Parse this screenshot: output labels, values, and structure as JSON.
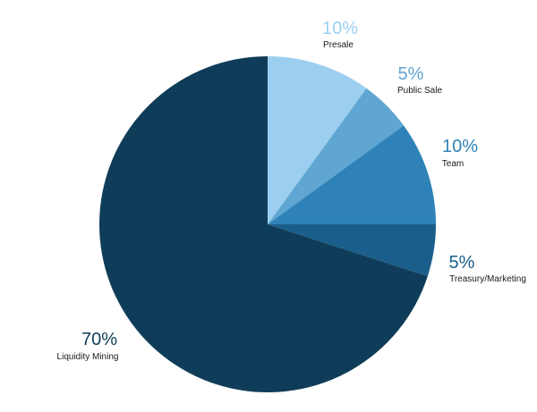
{
  "chart_data": {
    "type": "pie",
    "title": "",
    "start_angle": "12 o'clock",
    "direction": "clockwise",
    "slices": [
      {
        "label": "Presale",
        "value": 10,
        "value_label": "10%",
        "color": "#9ccfef",
        "label_color": "#9ccfef"
      },
      {
        "label": "Public Sale",
        "value": 5,
        "value_label": "5%",
        "color": "#5fa6d2",
        "label_color": "#5fa6d2"
      },
      {
        "label": "Team",
        "value": 10,
        "value_label": "10%",
        "color": "#2e82b7",
        "label_color": "#2e82b7"
      },
      {
        "label": "Treasury/Marketing",
        "value": 5,
        "value_label": "5%",
        "color": "#1a5f8b",
        "label_color": "#1a5f8b"
      },
      {
        "label": "Liquidity Mining",
        "value": 70,
        "value_label": "70%",
        "color": "#0f3d59",
        "label_color": "#0f3d59"
      }
    ]
  }
}
